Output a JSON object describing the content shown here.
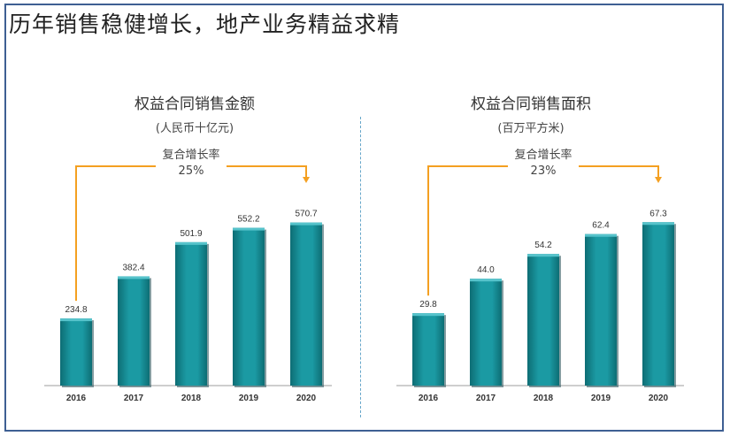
{
  "page": {
    "title": "历年销售稳健增长，地产业务精益求精"
  },
  "colors": {
    "bar_main": "#1b9aa3",
    "bar_light": "#56c3cb",
    "bar_dark": "#0d6d74",
    "bar_shadow": "#1f4d54",
    "arrow": "#f4a021",
    "frame": "#3e5f93",
    "divider": "#66a6c9"
  },
  "chart_data": [
    {
      "type": "bar",
      "title": "权益合同销售金额",
      "unit_label": "(人民币十亿元)",
      "categories": [
        "2016",
        "2017",
        "2018",
        "2019",
        "2020"
      ],
      "values": [
        234.8,
        382.4,
        501.9,
        552.2,
        570.7
      ],
      "value_labels": [
        "234.8",
        "382.4",
        "501.9",
        "552.2",
        "570.7"
      ],
      "ylim": [
        0,
        650
      ],
      "annotation": {
        "label": "复合增长率",
        "value": "25%",
        "from": "2016",
        "to": "2020"
      }
    },
    {
      "type": "bar",
      "title": "权益合同销售面积",
      "unit_label": "(百万平方米)",
      "categories": [
        "2016",
        "2017",
        "2018",
        "2019",
        "2020"
      ],
      "values": [
        29.8,
        44.0,
        54.2,
        62.4,
        67.3
      ],
      "value_labels": [
        "29.8",
        "44.0",
        "54.2",
        "62.4",
        "67.3"
      ],
      "ylim": [
        0,
        76.5
      ],
      "annotation": {
        "label": "复合增长率",
        "value": "23%",
        "from": "2016",
        "to": "2020"
      }
    }
  ]
}
